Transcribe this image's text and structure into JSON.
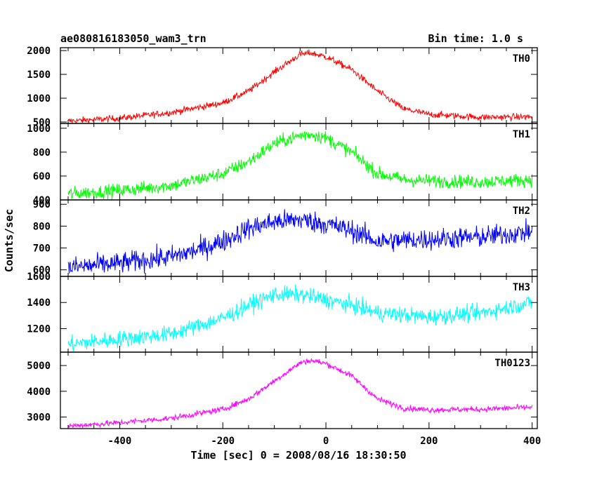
{
  "header": {
    "title": "ae080816183050_wam3_trn",
    "bin_time": "Bin time: 1.0 s"
  },
  "axes": {
    "xlabel": "Time [sec] 0 = 2008/08/16 18:30:50",
    "ylabel": "Counts/sec"
  },
  "chart_data": {
    "type": "line",
    "x_range": [
      -515,
      410
    ],
    "x_ticks": [
      -400,
      -200,
      0,
      200,
      400
    ],
    "bin_time_s": 1.0,
    "panels": [
      {
        "name": "TH0",
        "color": "#ff0000",
        "ylim": [
          470,
          2060
        ],
        "y_ticks": [
          500,
          1000,
          1500,
          2000
        ],
        "profile": [
          [
            -500,
            520
          ],
          [
            -400,
            580
          ],
          [
            -300,
            700
          ],
          [
            -200,
            900
          ],
          [
            -150,
            1150
          ],
          [
            -100,
            1550
          ],
          [
            -50,
            1920
          ],
          [
            -30,
            1950
          ],
          [
            0,
            1870
          ],
          [
            50,
            1600
          ],
          [
            100,
            1150
          ],
          [
            150,
            780
          ],
          [
            200,
            660
          ],
          [
            300,
            600
          ],
          [
            400,
            610
          ]
        ],
        "noise": 50
      },
      {
        "name": "TH1",
        "color": "#00ff00",
        "ylim": [
          400,
          1040
        ],
        "y_ticks": [
          400,
          600,
          800,
          1000
        ],
        "profile": [
          [
            -500,
            450
          ],
          [
            -400,
            480
          ],
          [
            -300,
            520
          ],
          [
            -200,
            620
          ],
          [
            -150,
            720
          ],
          [
            -100,
            870
          ],
          [
            -50,
            940
          ],
          [
            -30,
            950
          ],
          [
            0,
            920
          ],
          [
            50,
            800
          ],
          [
            100,
            620
          ],
          [
            150,
            570
          ],
          [
            200,
            560
          ],
          [
            300,
            550
          ],
          [
            400,
            570
          ]
        ],
        "noise": 40
      },
      {
        "name": "TH2",
        "color": "#0000ff",
        "ylim": [
          570,
          920
        ],
        "y_ticks": [
          600,
          700,
          800,
          900
        ],
        "profile": [
          [
            -500,
            610
          ],
          [
            -400,
            630
          ],
          [
            -300,
            660
          ],
          [
            -250,
            690
          ],
          [
            -200,
            730
          ],
          [
            -150,
            790
          ],
          [
            -100,
            820
          ],
          [
            -50,
            830
          ],
          [
            0,
            810
          ],
          [
            50,
            780
          ],
          [
            100,
            730
          ],
          [
            200,
            740
          ],
          [
            300,
            750
          ],
          [
            400,
            775
          ]
        ],
        "noise": 35
      },
      {
        "name": "TH3",
        "color": "#00ffff",
        "ylim": [
          1020,
          1600
        ],
        "y_ticks": [
          1200,
          1400,
          1600
        ],
        "profile": [
          [
            -500,
            1080
          ],
          [
            -400,
            1120
          ],
          [
            -300,
            1160
          ],
          [
            -200,
            1280
          ],
          [
            -150,
            1380
          ],
          [
            -100,
            1460
          ],
          [
            -50,
            1460
          ],
          [
            0,
            1420
          ],
          [
            50,
            1380
          ],
          [
            100,
            1320
          ],
          [
            200,
            1290
          ],
          [
            300,
            1320
          ],
          [
            400,
            1400
          ]
        ],
        "noise": 45
      },
      {
        "name": "TH0123",
        "color": "#ff00ff",
        "ylim": [
          2550,
          5520
        ],
        "y_ticks": [
          3000,
          4000,
          5000
        ],
        "profile": [
          [
            -500,
            2650
          ],
          [
            -400,
            2780
          ],
          [
            -300,
            2950
          ],
          [
            -200,
            3300
          ],
          [
            -150,
            3700
          ],
          [
            -100,
            4400
          ],
          [
            -50,
            5100
          ],
          [
            -30,
            5200
          ],
          [
            0,
            5080
          ],
          [
            50,
            4600
          ],
          [
            100,
            3700
          ],
          [
            150,
            3350
          ],
          [
            200,
            3280
          ],
          [
            300,
            3300
          ],
          [
            400,
            3380
          ]
        ],
        "noise": 80
      }
    ]
  }
}
